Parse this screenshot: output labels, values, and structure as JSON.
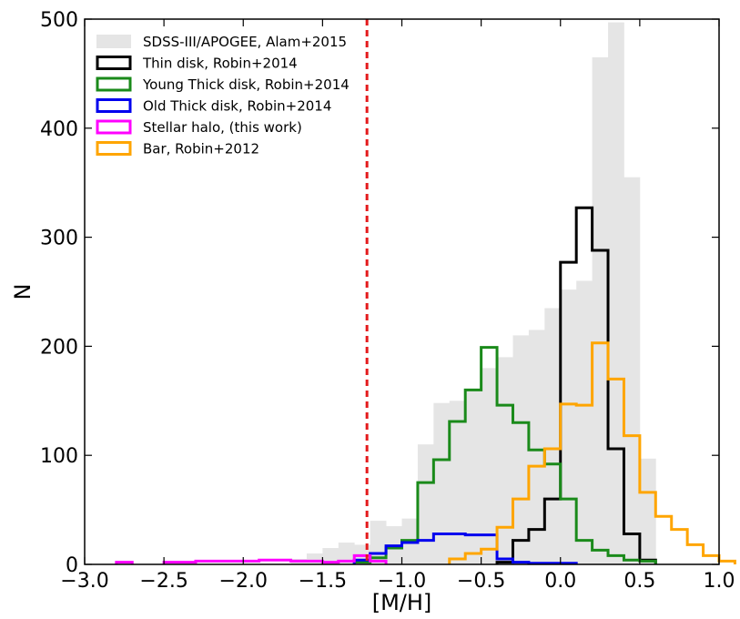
{
  "chart_data": {
    "type": "histogram",
    "xlabel": "[M/H]",
    "ylabel": "N",
    "xlim": [
      -3.0,
      1.0
    ],
    "ylim": [
      0,
      500
    ],
    "bin_width": 0.1,
    "xticks": [
      "−3.0",
      "−2.5",
      "−2.0",
      "−1.5",
      "−1.0",
      "−0.5",
      "0.0",
      "0.5",
      "1.0"
    ],
    "yticks": [
      "0",
      "100",
      "200",
      "300",
      "400",
      "500"
    ],
    "legend_position": "top-left",
    "threshold_line": {
      "x": -1.22,
      "color": "#e41a1c",
      "style": "dashed"
    },
    "series": [
      {
        "name": "SDSS-III/APOGEE, Alam+2015",
        "style": "filled",
        "color": "#e5e5e5",
        "bins": [
          [
            -1.7,
            5
          ],
          [
            -1.6,
            10
          ],
          [
            -1.5,
            15
          ],
          [
            -1.4,
            20
          ],
          [
            -1.3,
            18
          ],
          [
            -1.2,
            40
          ],
          [
            -1.1,
            35
          ],
          [
            -1.0,
            42
          ],
          [
            -0.9,
            110
          ],
          [
            -0.8,
            148
          ],
          [
            -0.7,
            150
          ],
          [
            -0.6,
            160
          ],
          [
            -0.5,
            180
          ],
          [
            -0.4,
            190
          ],
          [
            -0.3,
            210
          ],
          [
            -0.2,
            215
          ],
          [
            -0.1,
            235
          ],
          [
            0.0,
            252
          ],
          [
            0.1,
            260
          ],
          [
            0.2,
            465
          ],
          [
            0.3,
            497
          ],
          [
            0.4,
            355
          ],
          [
            0.5,
            97
          ]
        ]
      },
      {
        "name": "Thin disk, Robin+2014",
        "style": "step",
        "color": "#000000",
        "bins": [
          [
            -0.4,
            2
          ],
          [
            -0.3,
            22
          ],
          [
            -0.2,
            32
          ],
          [
            -0.1,
            60
          ],
          [
            0.0,
            277
          ],
          [
            0.1,
            327
          ],
          [
            0.2,
            288
          ],
          [
            0.3,
            106
          ],
          [
            0.4,
            28
          ],
          [
            0.5,
            4
          ]
        ]
      },
      {
        "name": "Young Thick disk, Robin+2014",
        "style": "step",
        "color": "#1a8a1a",
        "bins": [
          [
            -1.3,
            2
          ],
          [
            -1.2,
            6
          ],
          [
            -1.1,
            15
          ],
          [
            -1.0,
            22
          ],
          [
            -0.9,
            75
          ],
          [
            -0.8,
            96
          ],
          [
            -0.7,
            131
          ],
          [
            -0.6,
            160
          ],
          [
            -0.5,
            199
          ],
          [
            -0.4,
            146
          ],
          [
            -0.3,
            130
          ],
          [
            -0.2,
            105
          ],
          [
            -0.1,
            92
          ],
          [
            0.0,
            60
          ],
          [
            0.1,
            22
          ],
          [
            0.2,
            13
          ],
          [
            0.3,
            8
          ],
          [
            0.4,
            4
          ],
          [
            0.5,
            3
          ]
        ]
      },
      {
        "name": "Old Thick disk, Robin+2014",
        "style": "step",
        "color": "#0000ee",
        "bins": [
          [
            -1.3,
            4
          ],
          [
            -1.2,
            10
          ],
          [
            -1.1,
            17
          ],
          [
            -1.0,
            20
          ],
          [
            -0.9,
            22
          ],
          [
            -0.8,
            28
          ],
          [
            -0.7,
            28
          ],
          [
            -0.6,
            27
          ],
          [
            -0.5,
            27
          ],
          [
            -0.4,
            5
          ],
          [
            -0.3,
            2
          ],
          [
            -0.2,
            1
          ],
          [
            -0.1,
            1
          ],
          [
            0.0,
            1
          ]
        ]
      },
      {
        "name": "Stellar halo, (this work)",
        "style": "step",
        "color": "#ff00ff",
        "bins": [
          [
            -2.8,
            2
          ],
          [
            -2.5,
            2
          ],
          [
            -2.4,
            2
          ],
          [
            -2.3,
            3
          ],
          [
            -2.2,
            3
          ],
          [
            -2.1,
            3
          ],
          [
            -2.0,
            3
          ],
          [
            -1.9,
            4
          ],
          [
            -1.8,
            4
          ],
          [
            -1.7,
            3
          ],
          [
            -1.6,
            3
          ],
          [
            -1.5,
            2
          ],
          [
            -1.4,
            3
          ],
          [
            -1.3,
            8
          ],
          [
            -1.2,
            3
          ]
        ]
      },
      {
        "name": "Bar, Robin+2012",
        "style": "step",
        "color": "#ffa500",
        "bins": [
          [
            -0.7,
            5
          ],
          [
            -0.6,
            10
          ],
          [
            -0.5,
            14
          ],
          [
            -0.4,
            34
          ],
          [
            -0.3,
            60
          ],
          [
            -0.2,
            90
          ],
          [
            -0.1,
            106
          ],
          [
            0.0,
            147
          ],
          [
            0.1,
            146
          ],
          [
            0.2,
            203
          ],
          [
            0.3,
            170
          ],
          [
            0.4,
            118
          ],
          [
            0.5,
            66
          ],
          [
            0.6,
            44
          ],
          [
            0.7,
            32
          ],
          [
            0.8,
            18
          ],
          [
            0.9,
            8
          ],
          [
            1.0,
            3
          ]
        ]
      }
    ]
  }
}
